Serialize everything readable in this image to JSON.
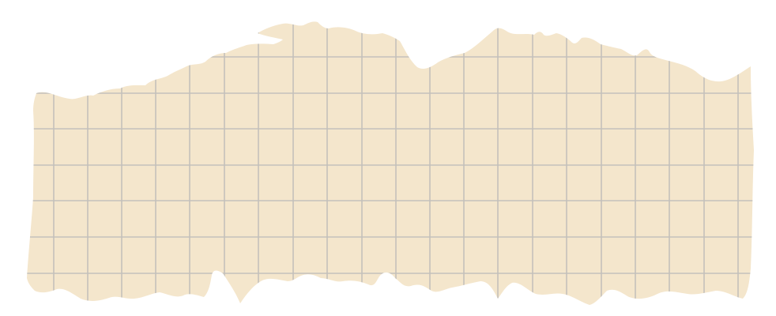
{
  "background": {
    "color": "#ffffff"
  },
  "paper": {
    "kind": "torn graph paper strip",
    "fill_color": "#f4e6cc",
    "grid_color": "#c4c0bb"
  }
}
